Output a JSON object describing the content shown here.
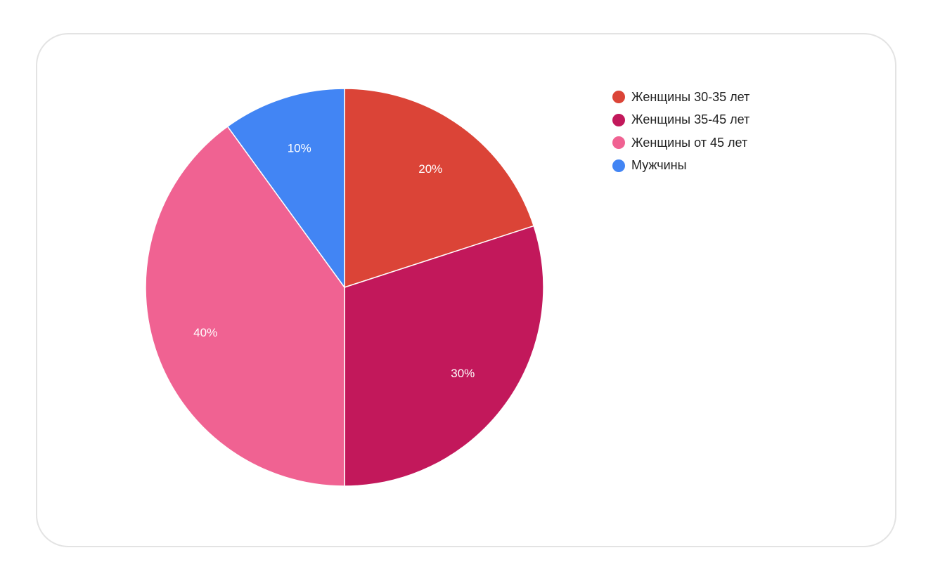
{
  "chart_data": {
    "type": "pie",
    "slices": [
      {
        "label": "Женщины 30-35 лет",
        "value": 20,
        "display": "20%",
        "color": "#DB4437"
      },
      {
        "label": "Женщины 35-45 лет",
        "value": 30,
        "display": "30%",
        "color": "#C2185B"
      },
      {
        "label": "Женщины от 45 лет",
        "value": 40,
        "display": "40%",
        "color": "#F06292"
      },
      {
        "label": "Мужчины",
        "value": 10,
        "display": "10%",
        "color": "#4285F4"
      }
    ],
    "start_angle": "top (12 o'clock)",
    "direction": "clockwise",
    "legend_position": "right",
    "title": ""
  }
}
